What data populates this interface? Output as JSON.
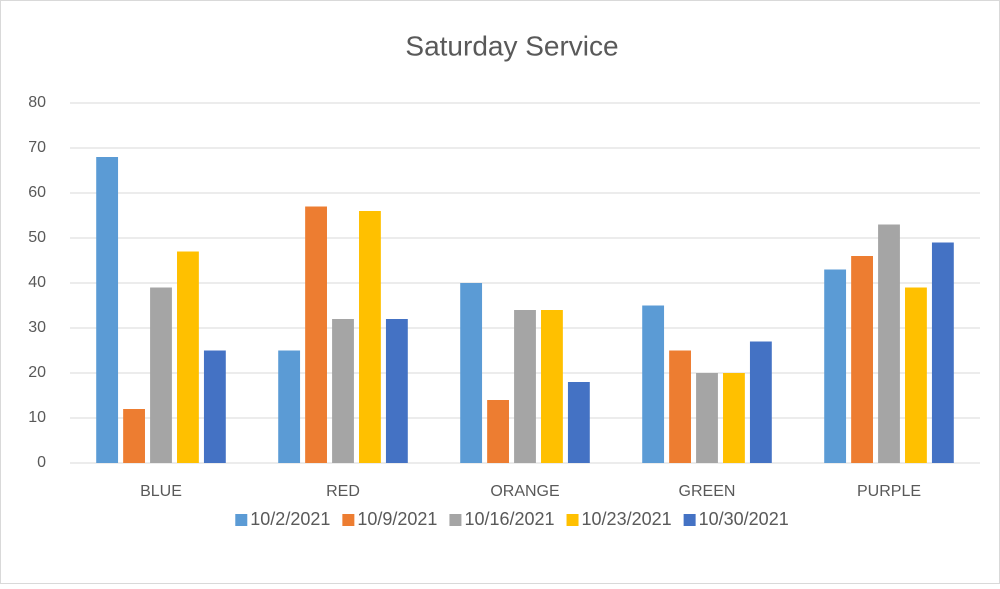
{
  "chart_data": {
    "type": "bar",
    "title": "Saturday Service",
    "categories": [
      "BLUE",
      "RED",
      "ORANGE",
      "GREEN",
      "PURPLE"
    ],
    "series": [
      {
        "name": "10/2/2021",
        "color": "#5b9bd5",
        "values": [
          68,
          25,
          40,
          35,
          43
        ]
      },
      {
        "name": "10/9/2021",
        "color": "#ed7d31",
        "values": [
          12,
          57,
          14,
          25,
          46
        ]
      },
      {
        "name": "10/16/2021",
        "color": "#a5a5a5",
        "values": [
          39,
          32,
          34,
          20,
          53
        ]
      },
      {
        "name": "10/23/2021",
        "color": "#ffc000",
        "values": [
          47,
          56,
          34,
          20,
          39
        ]
      },
      {
        "name": "10/30/2021",
        "color": "#4472c4",
        "values": [
          25,
          32,
          18,
          27,
          49
        ]
      }
    ],
    "ylim": [
      0,
      80
    ],
    "yticks": [
      0,
      10,
      20,
      30,
      40,
      50,
      60,
      70,
      80
    ],
    "grid": true,
    "legend": "bottom"
  }
}
